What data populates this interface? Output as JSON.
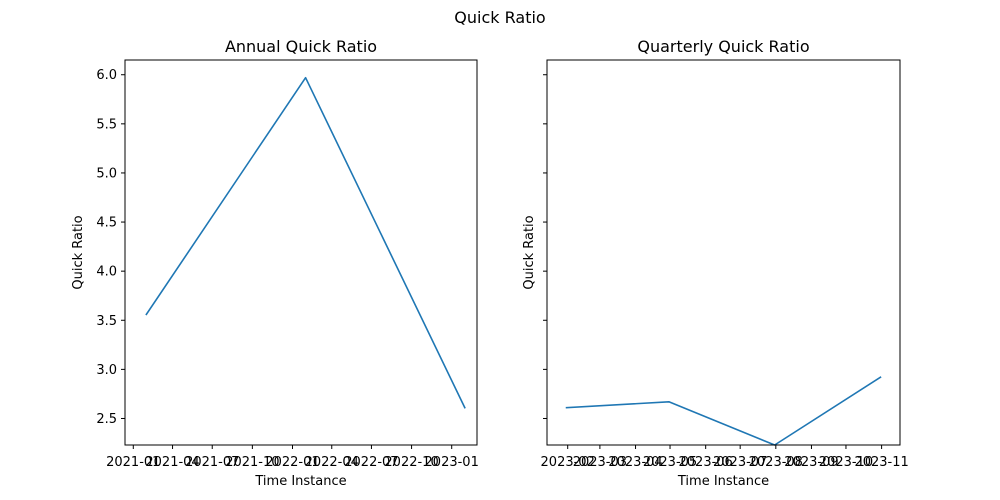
{
  "figure": {
    "title": "Quick Ratio"
  },
  "chart_data": [
    {
      "type": "line",
      "title": "Annual Quick Ratio",
      "xlabel": "Time Instance",
      "ylabel": "Quick Ratio",
      "x_type": "date",
      "xlim": [
        "2020-12-13",
        "2023-02-28"
      ],
      "ylim": [
        2.23,
        6.15
      ],
      "xticks": [
        {
          "date": "2021-01-01",
          "label": "2021-01"
        },
        {
          "date": "2021-04-01",
          "label": "2021-04"
        },
        {
          "date": "2021-07-01",
          "label": "2021-07"
        },
        {
          "date": "2021-10-01",
          "label": "2021-10"
        },
        {
          "date": "2022-01-01",
          "label": "2022-01"
        },
        {
          "date": "2022-04-01",
          "label": "2022-04"
        },
        {
          "date": "2022-07-01",
          "label": "2022-07"
        },
        {
          "date": "2022-10-01",
          "label": "2022-10"
        },
        {
          "date": "2023-01-01",
          "label": "2023-01"
        }
      ],
      "yticks": [
        {
          "value": 2.5,
          "label": "2.5"
        },
        {
          "value": 3.0,
          "label": "3.0"
        },
        {
          "value": 3.5,
          "label": "3.5"
        },
        {
          "value": 4.0,
          "label": "4.0"
        },
        {
          "value": 4.5,
          "label": "4.5"
        },
        {
          "value": 5.0,
          "label": "5.0"
        },
        {
          "value": 5.5,
          "label": "5.5"
        },
        {
          "value": 6.0,
          "label": "6.0"
        }
      ],
      "grid": false,
      "series": [
        {
          "color": "#1f77b4",
          "points": [
            {
              "x": "2021-01-31",
              "y": 3.56
            },
            {
              "x": "2022-01-31",
              "y": 5.97
            },
            {
              "x": "2023-01-31",
              "y": 2.61
            }
          ]
        }
      ]
    },
    {
      "type": "line",
      "title": "Quarterly Quick Ratio",
      "xlabel": "Time Instance",
      "ylabel": "Quick Ratio",
      "x_type": "date",
      "xlim": [
        "2023-01-14",
        "2023-11-17"
      ],
      "ylim": [
        2.23,
        6.15
      ],
      "share_y_with_first": true,
      "show_ytick_labels": false,
      "xticks": [
        {
          "date": "2023-02-01",
          "label": "2023-02"
        },
        {
          "date": "2023-03-01",
          "label": "2023-03"
        },
        {
          "date": "2023-04-01",
          "label": "2023-04"
        },
        {
          "date": "2023-05-01",
          "label": "2023-05"
        },
        {
          "date": "2023-06-01",
          "label": "2023-06"
        },
        {
          "date": "2023-07-01",
          "label": "2023-07"
        },
        {
          "date": "2023-08-01",
          "label": "2023-08"
        },
        {
          "date": "2023-09-01",
          "label": "2023-09"
        },
        {
          "date": "2023-10-01",
          "label": "2023-10"
        },
        {
          "date": "2023-11-01",
          "label": "2023-11"
        }
      ],
      "yticks": [
        {
          "value": 2.5,
          "label": "2.5"
        },
        {
          "value": 3.0,
          "label": "3.0"
        },
        {
          "value": 3.5,
          "label": "3.5"
        },
        {
          "value": 4.0,
          "label": "4.0"
        },
        {
          "value": 4.5,
          "label": "4.5"
        },
        {
          "value": 5.0,
          "label": "5.0"
        },
        {
          "value": 5.5,
          "label": "5.5"
        },
        {
          "value": 6.0,
          "label": "6.0"
        }
      ],
      "grid": false,
      "series": [
        {
          "color": "#1f77b4",
          "points": [
            {
              "x": "2023-01-31",
              "y": 2.61
            },
            {
              "x": "2023-04-30",
              "y": 2.67
            },
            {
              "x": "2023-07-31",
              "y": 2.23
            },
            {
              "x": "2023-10-31",
              "y": 2.92
            }
          ]
        }
      ]
    }
  ]
}
